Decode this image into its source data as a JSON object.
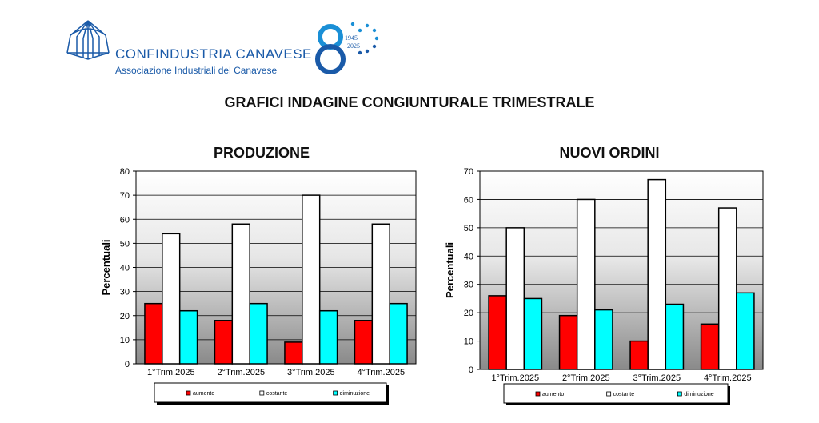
{
  "header": {
    "org_name": "CONFINDUSTRIA CANAVESE",
    "org_subtitle": "Associazione Industriali del Canavese",
    "anniversary_years_start": "1945",
    "anniversary_years_end": "2025",
    "anniversary_number": "8"
  },
  "page_title": "GRAFICI INDAGINE CONGIUNTURALE TRIMESTRALE",
  "colors": {
    "aumento": "#ff0000",
    "costante": "#ffffff",
    "diminuzione": "#00ffff",
    "brand": "#1a5aa8"
  },
  "chart_data": [
    {
      "type": "bar",
      "title": "PRODUZIONE",
      "ylabel": "Percentuali",
      "ylim": [
        0,
        80
      ],
      "yticks": [
        0,
        10,
        20,
        30,
        40,
        50,
        60,
        70,
        80
      ],
      "categories": [
        "1°Trim.2025",
        "2°Trim.2025",
        "3°Trim.2025",
        "4°Trim.2025"
      ],
      "series": [
        {
          "name": "aumento",
          "values": [
            25,
            18,
            9,
            18
          ]
        },
        {
          "name": "costante",
          "values": [
            54,
            58,
            70,
            58
          ]
        },
        {
          "name": "diminuzione",
          "values": [
            22,
            25,
            22,
            25
          ]
        }
      ],
      "legend": "bottom"
    },
    {
      "type": "bar",
      "title": "NUOVI ORDINI",
      "ylabel": "Percentuali",
      "ylim": [
        0,
        70
      ],
      "yticks": [
        0,
        10,
        20,
        30,
        40,
        50,
        60,
        70
      ],
      "categories": [
        "1°Trim.2025",
        "2°Trim.2025",
        "3°Trim.2025",
        "4°Trim.2025"
      ],
      "series": [
        {
          "name": "aumento",
          "values": [
            26,
            19,
            10,
            16
          ]
        },
        {
          "name": "costante",
          "values": [
            50,
            60,
            67,
            57
          ]
        },
        {
          "name": "diminuzione",
          "values": [
            25,
            21,
            23,
            27
          ]
        }
      ],
      "legend": "bottom"
    }
  ]
}
